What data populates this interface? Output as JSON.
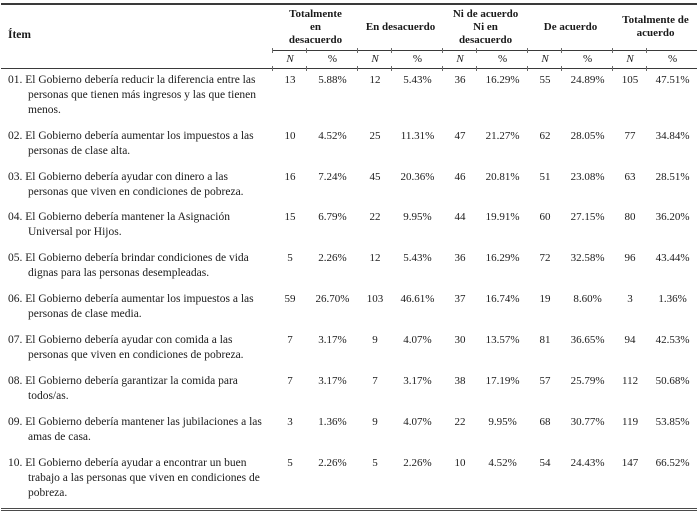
{
  "colors": {
    "rule": "#3a3a3a",
    "text": "#1b1b1b",
    "background": "#ffffff"
  },
  "table": {
    "item_header": "Ítem",
    "groups": [
      "Totalmente\nen\ndesacuerdo",
      "En desacuerdo",
      "Ni de acuerdo\nNi en\ndesacuerdo",
      "De acuerdo",
      "Totalmente de\nacuerdo"
    ],
    "subheaders": {
      "n": "N",
      "pct": "%"
    },
    "rows": [
      {
        "item": "01. El Gobierno debería reducir la diferencia entre las personas que tienen más ingresos y las que tienen menos.",
        "values": [
          "13",
          "5.88%",
          "12",
          "5.43%",
          "36",
          "16.29%",
          "55",
          "24.89%",
          "105",
          "47.51%"
        ]
      },
      {
        "item": "02. El Gobierno debería aumentar los impuestos a las personas de clase alta.",
        "values": [
          "10",
          "4.52%",
          "25",
          "11.31%",
          "47",
          "21.27%",
          "62",
          "28.05%",
          "77",
          "34.84%"
        ]
      },
      {
        "item": "03. El Gobierno debería ayudar con dinero a las personas que viven en condiciones de pobreza.",
        "values": [
          "16",
          "7.24%",
          "45",
          "20.36%",
          "46",
          "20.81%",
          "51",
          "23.08%",
          "63",
          "28.51%"
        ]
      },
      {
        "item": "04. El Gobierno debería mantener la Asignación Universal por Hijos.",
        "values": [
          "15",
          "6.79%",
          "22",
          "9.95%",
          "44",
          "19.91%",
          "60",
          "27.15%",
          "80",
          "36.20%"
        ]
      },
      {
        "item": "05. El Gobierno debería brindar condiciones de vida dignas para las personas desempleadas.",
        "values": [
          "5",
          "2.26%",
          "12",
          "5.43%",
          "36",
          "16.29%",
          "72",
          "32.58%",
          "96",
          "43.44%"
        ]
      },
      {
        "item": "06. El Gobierno debería aumentar los impuestos a las personas de clase media.",
        "values": [
          "59",
          "26.70%",
          "103",
          "46.61%",
          "37",
          "16.74%",
          "19",
          "8.60%",
          "3",
          "1.36%"
        ]
      },
      {
        "item": "07. El Gobierno debería ayudar con comida a las personas que viven en condiciones de pobreza.",
        "values": [
          "7",
          "3.17%",
          "9",
          "4.07%",
          "30",
          "13.57%",
          "81",
          "36.65%",
          "94",
          "42.53%"
        ]
      },
      {
        "item": "08. El Gobierno debería garantizar la comida para todos/as.",
        "values": [
          "7",
          "3.17%",
          "7",
          "3.17%",
          "38",
          "17.19%",
          "57",
          "25.79%",
          "112",
          "50.68%"
        ]
      },
      {
        "item": "09. El Gobierno debería mantener las jubilaciones a las amas de casa.",
        "values": [
          "3",
          "1.36%",
          "9",
          "4.07%",
          "22",
          "9.95%",
          "68",
          "30.77%",
          "119",
          "53.85%"
        ]
      },
      {
        "item": "10. El Gobierno debería ayudar a encontrar un buen trabajo a las personas que viven en condiciones de pobreza.",
        "values": [
          "5",
          "2.26%",
          "5",
          "2.26%",
          "10",
          "4.52%",
          "54",
          "24.43%",
          "147",
          "66.52%"
        ]
      }
    ]
  }
}
